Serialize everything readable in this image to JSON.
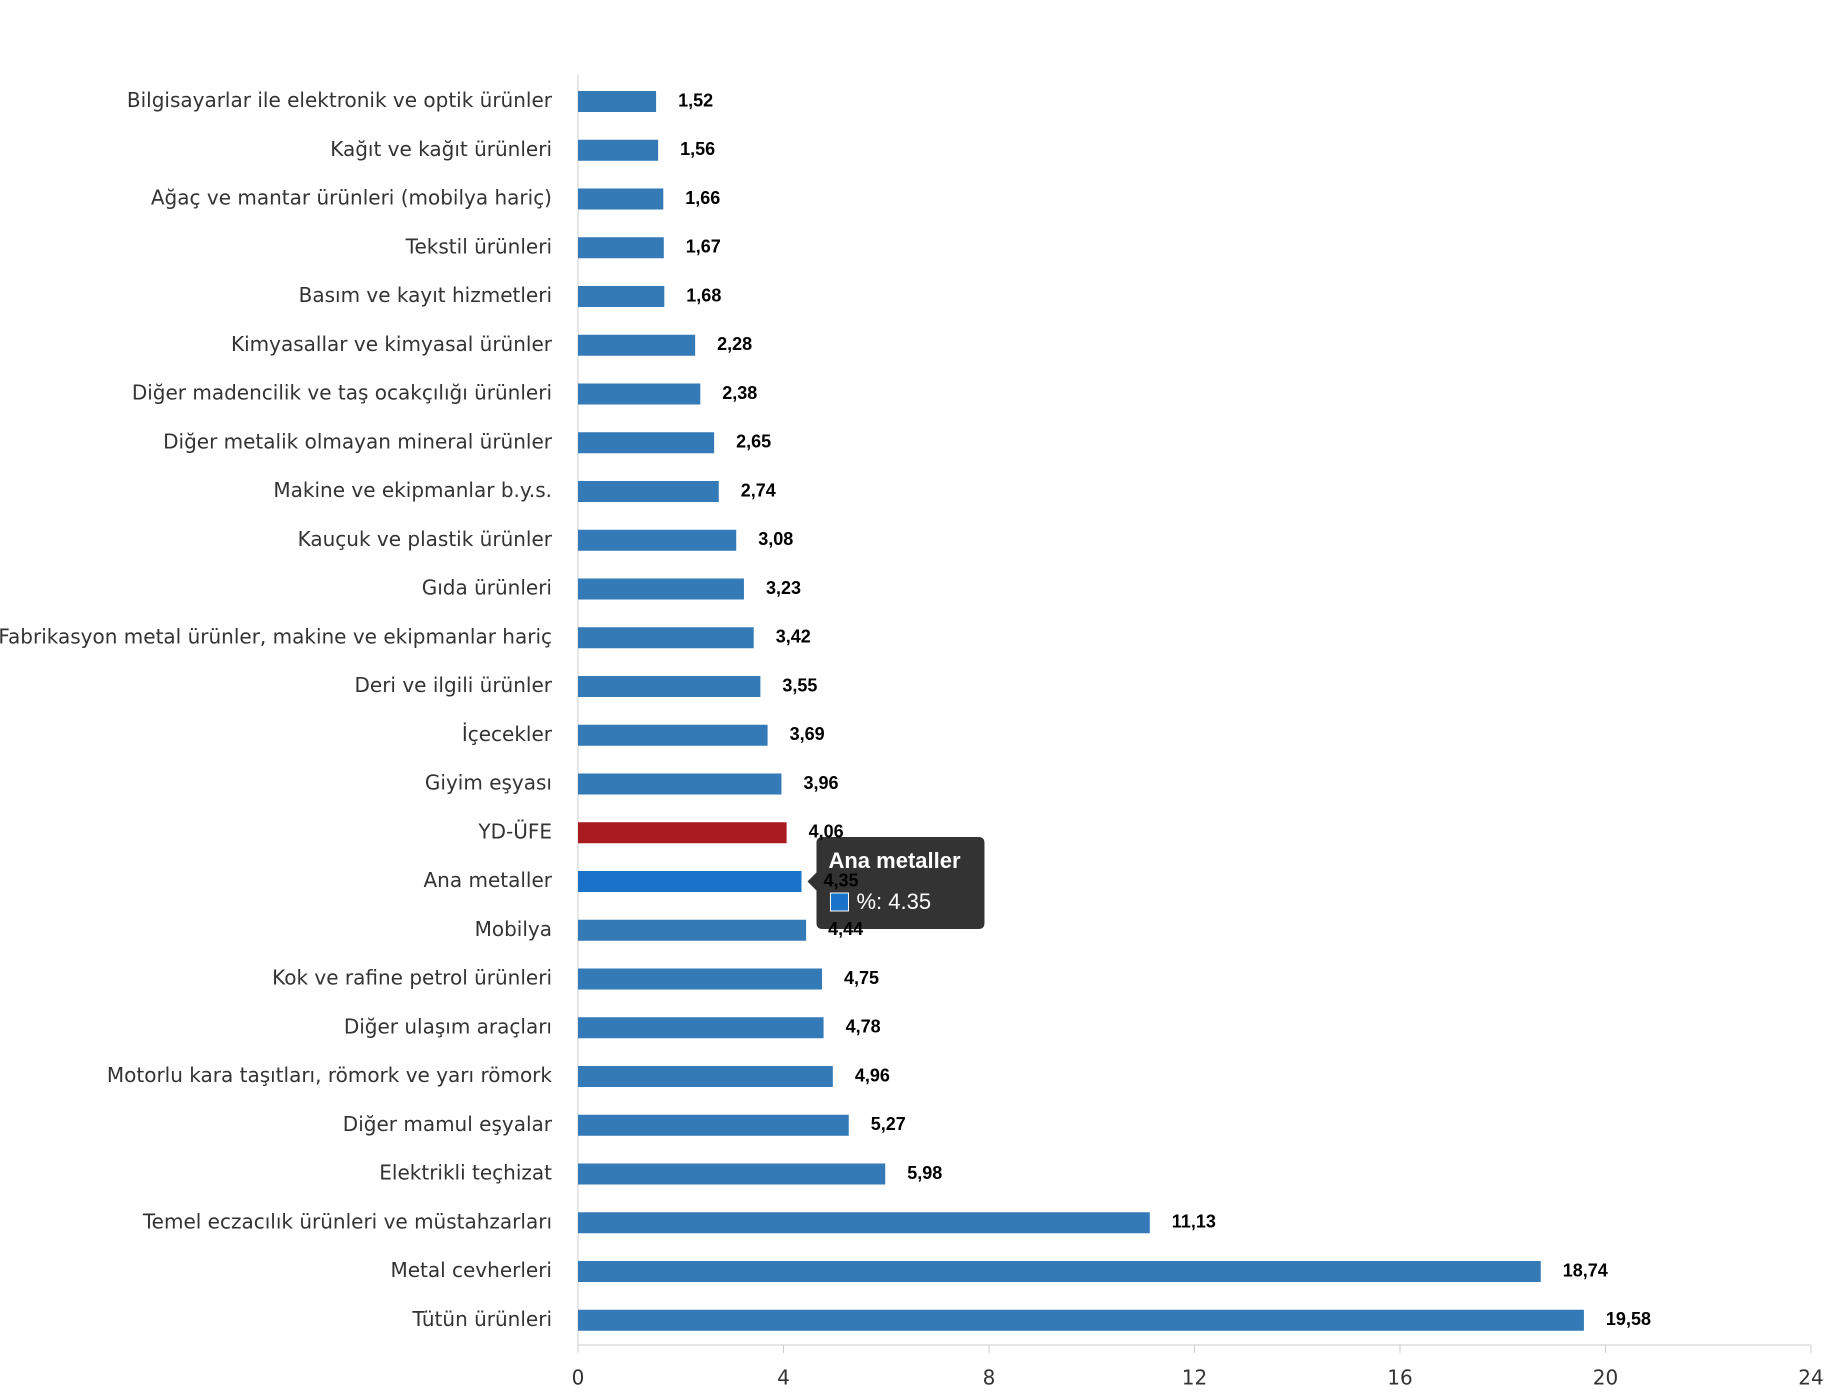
{
  "chart_data": {
    "type": "hbar",
    "categories": [
      "Bilgisayarlar ile elektronik ve optik ürünler",
      "Kağıt ve kağıt ürünleri",
      "Ağaç ve mantar ürünleri (mobilya hariç)",
      "Tekstil ürünleri",
      "Basım ve kayıt hizmetleri",
      "Kimyasallar ve kimyasal ürünler",
      "Diğer madencilik ve taş ocakçılığı ürünleri",
      "Diğer metalik olmayan mineral ürünler",
      "Makine ve ekipmanlar b.y.s.",
      "Kauçuk ve plastik ürünler",
      "Gıda ürünleri",
      "Fabrikasyon metal ürünler, makine ve ekipmanlar hariç",
      "Deri ve ilgili ürünler",
      "İçecekler",
      "Giyim eşyası",
      "YD-ÜFE",
      "Ana metaller",
      "Mobilya",
      "Kok ve rafine petrol ürünleri",
      "Diğer ulaşım araçları",
      "Motorlu kara taşıtları, römork ve yarı römork",
      "Diğer mamul eşyalar",
      "Elektrikli teçhizat",
      "Temel eczacılık ürünleri ve müstahzarları",
      "Metal cevherleri",
      "Tütün ürünleri"
    ],
    "values": [
      1.52,
      1.56,
      1.66,
      1.67,
      1.68,
      2.28,
      2.38,
      2.65,
      2.74,
      3.08,
      3.23,
      3.42,
      3.55,
      3.69,
      3.96,
      4.06,
      4.35,
      4.44,
      4.75,
      4.78,
      4.96,
      5.27,
      5.98,
      11.13,
      18.74,
      19.58
    ],
    "value_labels": [
      "1,52",
      "1,56",
      "1,66",
      "1,67",
      "1,68",
      "2,28",
      "2,38",
      "2,65",
      "2,74",
      "3,08",
      "3,23",
      "3,42",
      "3,55",
      "3,69",
      "3,96",
      "4,06",
      "4,35",
      "4,44",
      "4,75",
      "4,78",
      "4,96",
      "5,27",
      "5,98",
      "11,13",
      "18,74",
      "19,58"
    ],
    "color": "#337ab7",
    "colors": [
      "#337ab7",
      "#337ab7",
      "#337ab7",
      "#337ab7",
      "#337ab7",
      "#337ab7",
      "#337ab7",
      "#337ab7",
      "#337ab7",
      "#337ab7",
      "#337ab7",
      "#337ab7",
      "#337ab7",
      "#337ab7",
      "#337ab7",
      "#a91a21",
      "#1a73c8",
      "#337ab7",
      "#337ab7",
      "#337ab7",
      "#337ab7",
      "#337ab7",
      "#337ab7",
      "#337ab7",
      "#337ab7",
      "#337ab7"
    ],
    "xlim": [
      0,
      24
    ],
    "xticks": [
      0,
      4,
      8,
      12,
      16,
      20,
      24
    ],
    "grid": false,
    "tooltip": {
      "index": 16,
      "title": "Ana metaller",
      "label": "%: 4.35"
    }
  }
}
